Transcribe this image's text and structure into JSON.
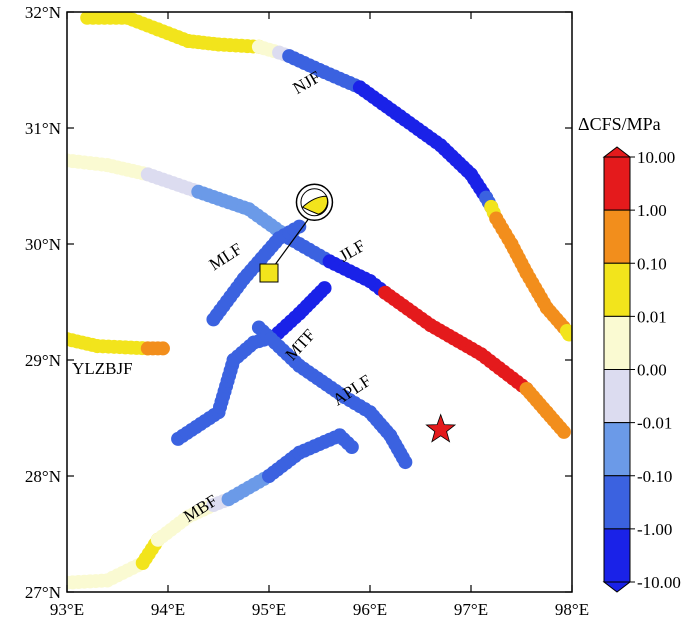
{
  "map": {
    "lon_range": [
      93,
      98
    ],
    "lat_range": [
      27,
      32
    ],
    "x_ticks": [
      "93°E",
      "94°E",
      "95°E",
      "96°E",
      "97°E",
      "98°E"
    ],
    "y_ticks": [
      "27°N",
      "28°N",
      "29°N",
      "30°N",
      "31°N",
      "32°N"
    ],
    "x_tick_values": [
      93,
      94,
      95,
      96,
      97,
      98
    ],
    "y_tick_values": [
      27,
      28,
      29,
      30,
      31,
      32
    ]
  },
  "colorbar": {
    "title": "ΔCFS/MPa",
    "labels": [
      "10.00",
      "1.00",
      "0.10",
      "0.01",
      "0.00",
      "-0.01",
      "-0.10",
      "-1.00",
      "-10.00"
    ],
    "classes": [
      {
        "color": "#e41a1c"
      },
      {
        "color": "#f28e1c"
      },
      {
        "color": "#f2e41c"
      },
      {
        "color": "#fafad2"
      },
      {
        "color": "#dcdcf0"
      },
      {
        "color": "#6b9ae8"
      },
      {
        "color": "#3b62e0"
      },
      {
        "color": "#1a22e8"
      }
    ],
    "top_triangle_color": "#e41a1c",
    "bottom_triangle_color": "#1a22e8"
  },
  "faults": [
    {
      "name": "NJF",
      "label": "NJF",
      "label_pos": [
        95.4,
        31.35
      ],
      "segments": [
        {
          "cls": 2,
          "pts": [
            [
              93.2,
              31.95
            ],
            [
              93.6,
              31.95
            ],
            [
              93.9,
              31.85
            ],
            [
              94.2,
              31.75
            ],
            [
              94.5,
              31.72
            ],
            [
              94.9,
              31.7
            ]
          ]
        },
        {
          "cls": 3,
          "pts": [
            [
              94.9,
              31.7
            ],
            [
              95.1,
              31.65
            ]
          ]
        },
        {
          "cls": 4,
          "pts": [
            [
              95.1,
              31.65
            ],
            [
              95.2,
              31.62
            ]
          ]
        },
        {
          "cls": 6,
          "pts": [
            [
              95.2,
              31.62
            ],
            [
              95.5,
              31.5
            ],
            [
              95.9,
              31.35
            ]
          ]
        },
        {
          "cls": 7,
          "pts": [
            [
              95.9,
              31.35
            ],
            [
              96.3,
              31.1
            ],
            [
              96.7,
              30.85
            ],
            [
              97.0,
              30.6
            ],
            [
              97.15,
              30.4
            ]
          ]
        },
        {
          "cls": 6,
          "pts": [
            [
              97.15,
              30.4
            ],
            [
              97.2,
              30.32
            ]
          ]
        },
        {
          "cls": 2,
          "pts": [
            [
              97.2,
              30.32
            ],
            [
              97.25,
              30.22
            ]
          ]
        },
        {
          "cls": 1,
          "pts": [
            [
              97.25,
              30.22
            ],
            [
              97.4,
              30.0
            ],
            [
              97.55,
              29.75
            ],
            [
              97.75,
              29.45
            ],
            [
              97.95,
              29.25
            ]
          ]
        },
        {
          "cls": 2,
          "pts": [
            [
              97.95,
              29.25
            ],
            [
              97.97,
              29.22
            ]
          ]
        }
      ]
    },
    {
      "name": "JLF",
      "label": "JLF",
      "label_pos": [
        95.85,
        29.9
      ],
      "segments": [
        {
          "cls": 3,
          "pts": [
            [
              93.0,
              30.72
            ],
            [
              93.4,
              30.68
            ],
            [
              93.8,
              30.6
            ]
          ]
        },
        {
          "cls": 4,
          "pts": [
            [
              93.8,
              30.6
            ],
            [
              94.3,
              30.45
            ]
          ]
        },
        {
          "cls": 5,
          "pts": [
            [
              94.3,
              30.45
            ],
            [
              94.8,
              30.3
            ],
            [
              95.2,
              30.05
            ]
          ]
        },
        {
          "cls": 6,
          "pts": [
            [
              95.2,
              30.05
            ],
            [
              95.6,
              29.85
            ]
          ]
        },
        {
          "cls": 7,
          "pts": [
            [
              95.6,
              29.85
            ],
            [
              96.0,
              29.68
            ],
            [
              96.15,
              29.58
            ]
          ]
        },
        {
          "cls": 0,
          "pts": [
            [
              96.15,
              29.58
            ],
            [
              96.6,
              29.3
            ],
            [
              97.1,
              29.05
            ],
            [
              97.55,
              28.75
            ]
          ]
        },
        {
          "cls": 1,
          "pts": [
            [
              97.55,
              28.75
            ],
            [
              97.75,
              28.55
            ],
            [
              97.92,
              28.38
            ]
          ]
        }
      ]
    },
    {
      "name": "MLF",
      "label": "MLF",
      "label_pos": [
        94.6,
        29.85
      ],
      "segments": [
        {
          "cls": 6,
          "pts": [
            [
              94.45,
              29.35
            ],
            [
              94.75,
              29.7
            ],
            [
              95.1,
              30.05
            ],
            [
              95.3,
              30.15
            ]
          ]
        }
      ]
    },
    {
      "name": "MTF",
      "label": "MTF",
      "label_pos": [
        95.35,
        29.1
      ],
      "segments": [
        {
          "cls": 6,
          "pts": [
            [
              94.1,
              28.32
            ],
            [
              94.5,
              28.55
            ],
            [
              94.65,
              29.0
            ],
            [
              94.85,
              29.15
            ],
            [
              95.05,
              29.2
            ]
          ]
        },
        {
          "cls": 7,
          "pts": [
            [
              95.05,
              29.2
            ],
            [
              95.3,
              29.4
            ],
            [
              95.55,
              29.62
            ]
          ]
        }
      ]
    },
    {
      "name": "APLF",
      "label": "APLF",
      "label_pos": [
        95.85,
        28.7
      ],
      "segments": [
        {
          "cls": 6,
          "pts": [
            [
              94.9,
              29.28
            ],
            [
              95.3,
              28.95
            ],
            [
              95.75,
              28.68
            ],
            [
              96.0,
              28.55
            ],
            [
              96.2,
              28.35
            ],
            [
              96.35,
              28.12
            ]
          ]
        }
      ]
    },
    {
      "name": "MBF",
      "label": "MBF",
      "label_pos": [
        94.35,
        27.68
      ],
      "segments": [
        {
          "cls": 3,
          "pts": [
            [
              93.0,
              27.08
            ],
            [
              93.4,
              27.1
            ],
            [
              93.75,
              27.25
            ],
            [
              93.9,
              27.45
            ]
          ]
        },
        {
          "cls": 2,
          "pts": [
            [
              93.75,
              27.25
            ],
            [
              93.9,
              27.45
            ]
          ]
        },
        {
          "cls": 3,
          "pts": [
            [
              93.9,
              27.45
            ],
            [
              94.2,
              27.65
            ],
            [
              94.45,
              27.75
            ]
          ]
        },
        {
          "cls": 4,
          "pts": [
            [
              94.45,
              27.75
            ],
            [
              94.6,
              27.8
            ]
          ]
        },
        {
          "cls": 5,
          "pts": [
            [
              94.6,
              27.8
            ],
            [
              95.0,
              28.0
            ]
          ]
        },
        {
          "cls": 6,
          "pts": [
            [
              95.0,
              28.0
            ],
            [
              95.3,
              28.2
            ],
            [
              95.7,
              28.35
            ],
            [
              95.82,
              28.25
            ]
          ]
        }
      ]
    },
    {
      "name": "YLZBJF",
      "label": "YLZBJF",
      "label_pos": [
        93.35,
        28.88
      ],
      "segments": [
        {
          "cls": 2,
          "pts": [
            [
              93.0,
              29.18
            ],
            [
              93.3,
              29.12
            ],
            [
              93.8,
              29.1
            ]
          ]
        },
        {
          "cls": 1,
          "pts": [
            [
              93.8,
              29.1
            ],
            [
              93.95,
              29.1
            ]
          ]
        }
      ]
    }
  ],
  "epicenter": {
    "lon": 96.7,
    "lat": 28.4,
    "color": "#e41a1c"
  },
  "mechanism": {
    "lon": 95.45,
    "lat": 30.36,
    "compression_color": "#f2e41c"
  },
  "station": {
    "lon": 95.0,
    "lat": 29.75,
    "color": "#f2e41c"
  }
}
